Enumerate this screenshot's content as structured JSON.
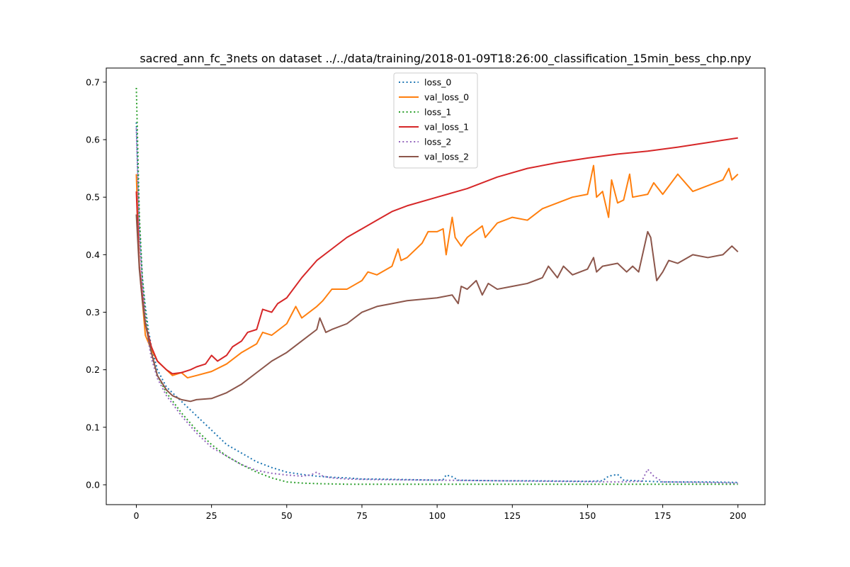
{
  "chart_data": {
    "type": "line",
    "title": "sacred_ann_fc_3nets on dataset ../../data/training/2018-01-09T18:26:00_classification_15min_bess_chp.npy",
    "xlabel": "",
    "ylabel": "",
    "xlim": [
      -10,
      209
    ],
    "ylim": [
      -0.0345,
      0.7245
    ],
    "xticks": [
      0,
      25,
      50,
      75,
      100,
      125,
      150,
      175,
      200
    ],
    "xtick_labels": [
      "0",
      "25",
      "50",
      "75",
      "100",
      "125",
      "150",
      "175",
      "200"
    ],
    "yticks": [
      0.0,
      0.1,
      0.2,
      0.3,
      0.4,
      0.5,
      0.6,
      0.7
    ],
    "ytick_labels": [
      "0.0",
      "0.1",
      "0.2",
      "0.3",
      "0.4",
      "0.5",
      "0.6",
      "0.7"
    ],
    "grid": false,
    "legend_position": "top-center",
    "series": [
      {
        "name": "loss_0",
        "color": "#1f77b4",
        "style": "dotted",
        "points": [
          [
            0,
            0.63
          ],
          [
            1,
            0.45
          ],
          [
            2,
            0.36
          ],
          [
            3,
            0.31
          ],
          [
            4,
            0.27
          ],
          [
            5,
            0.24
          ],
          [
            7,
            0.2
          ],
          [
            10,
            0.17
          ],
          [
            15,
            0.145
          ],
          [
            20,
            0.12
          ],
          [
            25,
            0.095
          ],
          [
            30,
            0.07
          ],
          [
            35,
            0.055
          ],
          [
            40,
            0.04
          ],
          [
            45,
            0.03
          ],
          [
            50,
            0.022
          ],
          [
            55,
            0.018
          ],
          [
            60,
            0.015
          ],
          [
            65,
            0.013
          ],
          [
            70,
            0.012
          ],
          [
            75,
            0.01
          ],
          [
            80,
            0.01
          ],
          [
            90,
            0.009
          ],
          [
            100,
            0.008
          ],
          [
            102,
            0.009
          ],
          [
            103,
            0.017
          ],
          [
            105,
            0.014
          ],
          [
            107,
            0.008
          ],
          [
            120,
            0.007
          ],
          [
            130,
            0.007
          ],
          [
            150,
            0.006
          ],
          [
            155,
            0.007
          ],
          [
            157,
            0.015
          ],
          [
            160,
            0.018
          ],
          [
            162,
            0.008
          ],
          [
            175,
            0.005
          ],
          [
            190,
            0.005
          ],
          [
            200,
            0.004
          ]
        ]
      },
      {
        "name": "val_loss_0",
        "color": "#ff7f0e",
        "style": "solid",
        "points": [
          [
            0,
            0.54
          ],
          [
            1,
            0.38
          ],
          [
            2,
            0.32
          ],
          [
            3,
            0.26
          ],
          [
            5,
            0.235
          ],
          [
            7,
            0.215
          ],
          [
            10,
            0.2
          ],
          [
            12,
            0.19
          ],
          [
            15,
            0.195
          ],
          [
            17,
            0.186
          ],
          [
            20,
            0.19
          ],
          [
            25,
            0.197
          ],
          [
            30,
            0.21
          ],
          [
            35,
            0.23
          ],
          [
            40,
            0.245
          ],
          [
            42,
            0.265
          ],
          [
            45,
            0.26
          ],
          [
            50,
            0.28
          ],
          [
            52,
            0.3
          ],
          [
            53,
            0.31
          ],
          [
            55,
            0.29
          ],
          [
            60,
            0.31
          ],
          [
            62,
            0.32
          ],
          [
            65,
            0.34
          ],
          [
            70,
            0.34
          ],
          [
            75,
            0.355
          ],
          [
            77,
            0.37
          ],
          [
            80,
            0.365
          ],
          [
            85,
            0.38
          ],
          [
            87,
            0.41
          ],
          [
            88,
            0.39
          ],
          [
            90,
            0.395
          ],
          [
            95,
            0.42
          ],
          [
            97,
            0.44
          ],
          [
            100,
            0.44
          ],
          [
            102,
            0.445
          ],
          [
            103,
            0.4
          ],
          [
            105,
            0.465
          ],
          [
            106,
            0.43
          ],
          [
            108,
            0.415
          ],
          [
            110,
            0.43
          ],
          [
            115,
            0.45
          ],
          [
            116,
            0.43
          ],
          [
            120,
            0.455
          ],
          [
            125,
            0.465
          ],
          [
            130,
            0.46
          ],
          [
            135,
            0.48
          ],
          [
            140,
            0.49
          ],
          [
            145,
            0.5
          ],
          [
            150,
            0.505
          ],
          [
            152,
            0.555
          ],
          [
            153,
            0.5
          ],
          [
            155,
            0.51
          ],
          [
            157,
            0.465
          ],
          [
            158,
            0.53
          ],
          [
            160,
            0.49
          ],
          [
            162,
            0.495
          ],
          [
            164,
            0.54
          ],
          [
            165,
            0.5
          ],
          [
            170,
            0.505
          ],
          [
            172,
            0.525
          ],
          [
            175,
            0.505
          ],
          [
            180,
            0.54
          ],
          [
            185,
            0.51
          ],
          [
            190,
            0.52
          ],
          [
            195,
            0.53
          ],
          [
            197,
            0.55
          ],
          [
            198,
            0.53
          ],
          [
            200,
            0.54
          ]
        ]
      },
      {
        "name": "loss_1",
        "color": "#2ca02c",
        "style": "dotted",
        "points": [
          [
            0,
            0.69
          ],
          [
            1,
            0.47
          ],
          [
            2,
            0.36
          ],
          [
            3,
            0.3
          ],
          [
            4,
            0.26
          ],
          [
            5,
            0.23
          ],
          [
            7,
            0.19
          ],
          [
            10,
            0.16
          ],
          [
            15,
            0.125
          ],
          [
            20,
            0.095
          ],
          [
            25,
            0.07
          ],
          [
            30,
            0.05
          ],
          [
            35,
            0.035
          ],
          [
            40,
            0.022
          ],
          [
            45,
            0.012
          ],
          [
            50,
            0.005
          ],
          [
            55,
            0.003
          ],
          [
            60,
            0.002
          ],
          [
            70,
            0.001
          ],
          [
            80,
            0.001
          ],
          [
            100,
            0.001
          ],
          [
            150,
            0.001
          ],
          [
            200,
            0.001
          ]
        ]
      },
      {
        "name": "val_loss_1",
        "color": "#d62728",
        "style": "solid",
        "points": [
          [
            0,
            0.51
          ],
          [
            1,
            0.38
          ],
          [
            2,
            0.33
          ],
          [
            3,
            0.28
          ],
          [
            5,
            0.24
          ],
          [
            7,
            0.215
          ],
          [
            10,
            0.2
          ],
          [
            12,
            0.193
          ],
          [
            15,
            0.195
          ],
          [
            18,
            0.2
          ],
          [
            20,
            0.205
          ],
          [
            23,
            0.21
          ],
          [
            25,
            0.225
          ],
          [
            27,
            0.215
          ],
          [
            30,
            0.225
          ],
          [
            32,
            0.24
          ],
          [
            35,
            0.25
          ],
          [
            37,
            0.265
          ],
          [
            40,
            0.27
          ],
          [
            42,
            0.305
          ],
          [
            45,
            0.3
          ],
          [
            47,
            0.315
          ],
          [
            50,
            0.325
          ],
          [
            55,
            0.36
          ],
          [
            60,
            0.39
          ],
          [
            65,
            0.41
          ],
          [
            70,
            0.43
          ],
          [
            75,
            0.445
          ],
          [
            80,
            0.46
          ],
          [
            85,
            0.475
          ],
          [
            90,
            0.485
          ],
          [
            100,
            0.5
          ],
          [
            110,
            0.515
          ],
          [
            120,
            0.535
          ],
          [
            130,
            0.55
          ],
          [
            140,
            0.56
          ],
          [
            150,
            0.568
          ],
          [
            160,
            0.575
          ],
          [
            170,
            0.58
          ],
          [
            180,
            0.587
          ],
          [
            190,
            0.595
          ],
          [
            200,
            0.603
          ]
        ]
      },
      {
        "name": "loss_2",
        "color": "#9467bd",
        "style": "dotted",
        "points": [
          [
            0,
            0.62
          ],
          [
            1,
            0.44
          ],
          [
            2,
            0.35
          ],
          [
            3,
            0.29
          ],
          [
            4,
            0.25
          ],
          [
            5,
            0.22
          ],
          [
            7,
            0.185
          ],
          [
            10,
            0.155
          ],
          [
            15,
            0.12
          ],
          [
            20,
            0.09
          ],
          [
            25,
            0.065
          ],
          [
            30,
            0.05
          ],
          [
            35,
            0.035
          ],
          [
            40,
            0.025
          ],
          [
            45,
            0.02
          ],
          [
            50,
            0.017
          ],
          [
            55,
            0.015
          ],
          [
            58,
            0.017
          ],
          [
            60,
            0.022
          ],
          [
            62,
            0.015
          ],
          [
            65,
            0.012
          ],
          [
            70,
            0.01
          ],
          [
            80,
            0.009
          ],
          [
            100,
            0.008
          ],
          [
            120,
            0.007
          ],
          [
            140,
            0.006
          ],
          [
            160,
            0.005
          ],
          [
            168,
            0.006
          ],
          [
            170,
            0.027
          ],
          [
            172,
            0.015
          ],
          [
            175,
            0.005
          ],
          [
            190,
            0.004
          ],
          [
            200,
            0.003
          ]
        ]
      },
      {
        "name": "val_loss_2",
        "color": "#8c564b",
        "style": "solid",
        "points": [
          [
            0,
            0.47
          ],
          [
            1,
            0.375
          ],
          [
            2,
            0.32
          ],
          [
            3,
            0.28
          ],
          [
            5,
            0.23
          ],
          [
            7,
            0.19
          ],
          [
            10,
            0.165
          ],
          [
            12,
            0.155
          ],
          [
            15,
            0.148
          ],
          [
            18,
            0.145
          ],
          [
            20,
            0.148
          ],
          [
            25,
            0.15
          ],
          [
            30,
            0.16
          ],
          [
            35,
            0.175
          ],
          [
            40,
            0.195
          ],
          [
            45,
            0.215
          ],
          [
            50,
            0.23
          ],
          [
            55,
            0.25
          ],
          [
            60,
            0.27
          ],
          [
            61,
            0.29
          ],
          [
            63,
            0.265
          ],
          [
            65,
            0.27
          ],
          [
            70,
            0.28
          ],
          [
            75,
            0.3
          ],
          [
            80,
            0.31
          ],
          [
            85,
            0.315
          ],
          [
            90,
            0.32
          ],
          [
            100,
            0.325
          ],
          [
            105,
            0.33
          ],
          [
            107,
            0.315
          ],
          [
            108,
            0.345
          ],
          [
            110,
            0.34
          ],
          [
            113,
            0.355
          ],
          [
            115,
            0.33
          ],
          [
            117,
            0.35
          ],
          [
            120,
            0.34
          ],
          [
            125,
            0.345
          ],
          [
            130,
            0.35
          ],
          [
            135,
            0.36
          ],
          [
            137,
            0.38
          ],
          [
            140,
            0.36
          ],
          [
            142,
            0.38
          ],
          [
            145,
            0.365
          ],
          [
            150,
            0.375
          ],
          [
            152,
            0.395
          ],
          [
            153,
            0.37
          ],
          [
            155,
            0.38
          ],
          [
            160,
            0.385
          ],
          [
            163,
            0.37
          ],
          [
            165,
            0.38
          ],
          [
            167,
            0.37
          ],
          [
            170,
            0.44
          ],
          [
            171,
            0.43
          ],
          [
            173,
            0.355
          ],
          [
            175,
            0.37
          ],
          [
            177,
            0.39
          ],
          [
            180,
            0.385
          ],
          [
            185,
            0.4
          ],
          [
            190,
            0.395
          ],
          [
            195,
            0.4
          ],
          [
            198,
            0.415
          ],
          [
            200,
            0.405
          ]
        ]
      }
    ]
  }
}
